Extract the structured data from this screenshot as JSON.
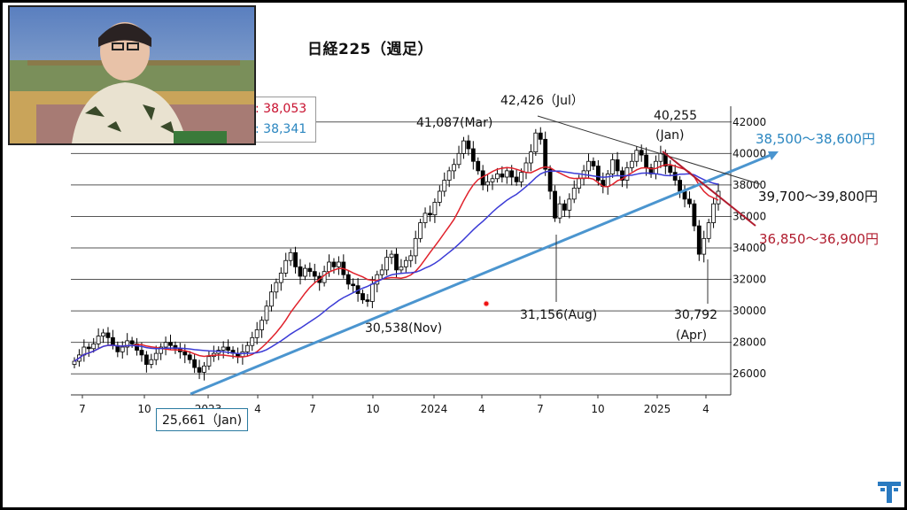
{
  "title": "日経225（週足）",
  "legend": {
    "ma_red_value": "38,053",
    "ma_blue_value": "38,341",
    "ma_red_prefix": ":",
    "ma_blue_prefix": ":"
  },
  "colors": {
    "red_ma": "#e0212b",
    "blue_ma": "#3b3bd6",
    "trend_blue": "#4b95cf",
    "trend_red": "#b01c2e",
    "annotation_blue": "#2a86c0",
    "annotation_red": "#b01c2e"
  },
  "annotations": {
    "high_jul": "42,426（Jul）",
    "high_mar": "41,087(Mar)",
    "jan_2025_value": "40,255",
    "jan_2025_month": "(Jan)",
    "low_nov": "30,538(Nov)",
    "low_aug": "31,156(Aug)",
    "low_apr_value": "30,792",
    "low_apr_month": "(Apr)",
    "low_jan_2023": "25,661（Jan)",
    "target_blue": "38,500～38,600円",
    "target_black": "39,700～39,800円",
    "target_red": "36,850～36,900円"
  },
  "chart_data": {
    "type": "candlestick",
    "title": "日経225（週足）",
    "y_ticks": [
      "42000",
      "40000",
      "38000",
      "36000",
      "34000",
      "32000",
      "30000",
      "28000",
      "26000"
    ],
    "ylim": [
      25000,
      43000
    ],
    "x_ticks": [
      "7",
      "10",
      "2023",
      "4",
      "7",
      "10",
      "2024",
      "4",
      "7",
      "10",
      "2025",
      "4"
    ],
    "grid": "horizontal",
    "key_points": [
      {
        "label": "25,661（Jan)",
        "x": "2023-01",
        "y": 25661
      },
      {
        "label": "30,538(Nov)",
        "x": "2023-11",
        "y": 30538
      },
      {
        "label": "41,087(Mar)",
        "x": "2024-03",
        "y": 41087
      },
      {
        "label": "42,426（Jul）",
        "x": "2024-07",
        "y": 42426
      },
      {
        "label": "31,156(Aug)",
        "x": "2024-08",
        "y": 31156
      },
      {
        "label": "40,255",
        "x": "2025-01",
        "y": 40255
      },
      {
        "label": "30,792",
        "x": "2025-04",
        "y": 30792
      }
    ],
    "weekly_close": [
      26800,
      27200,
      27700,
      27600,
      27900,
      28400,
      28600,
      28300,
      27800,
      27400,
      27700,
      28100,
      27900,
      27500,
      27200,
      26600,
      26900,
      27300,
      27700,
      28000,
      27800,
      27600,
      27400,
      27200,
      26900,
      26400,
      26100,
      26500,
      27100,
      27300,
      27500,
      27700,
      27500,
      27300,
      27100,
      27400,
      27800,
      28300,
      28800,
      29400,
      30300,
      31200,
      31800,
      32400,
      33200,
      33700,
      32800,
      32200,
      32700,
      32500,
      32200,
      31800,
      32500,
      33100,
      32800,
      33100,
      32300,
      31700,
      31600,
      31100,
      30700,
      30600,
      31700,
      32300,
      32600,
      33400,
      33600,
      32600,
      32800,
      33200,
      33500,
      34600,
      35600,
      36200,
      36100,
      36900,
      37600,
      38300,
      38900,
      39300,
      40000,
      40800,
      40300,
      39500,
      38900,
      38000,
      38200,
      38400,
      38700,
      38500,
      38900,
      38500,
      38200,
      38800,
      39400,
      40100,
      41300,
      40900,
      39000,
      37600,
      35900,
      36800,
      36400,
      37100,
      37800,
      38400,
      38900,
      39500,
      39200,
      38300,
      37900,
      38700,
      39600,
      38900,
      38300,
      39100,
      39500,
      40200,
      39900,
      39100,
      38700,
      39500,
      40000,
      39200,
      38800,
      38300,
      37600,
      37100,
      36800,
      35400,
      33600,
      34600,
      35600,
      36800,
      37600
    ]
  },
  "guide_lines": {
    "blue_trend": "support line from 2023 Jan low",
    "red_trend": "resistance line from 2025 Jan high",
    "black_trend": "resistance line from 2024 Jul high"
  }
}
